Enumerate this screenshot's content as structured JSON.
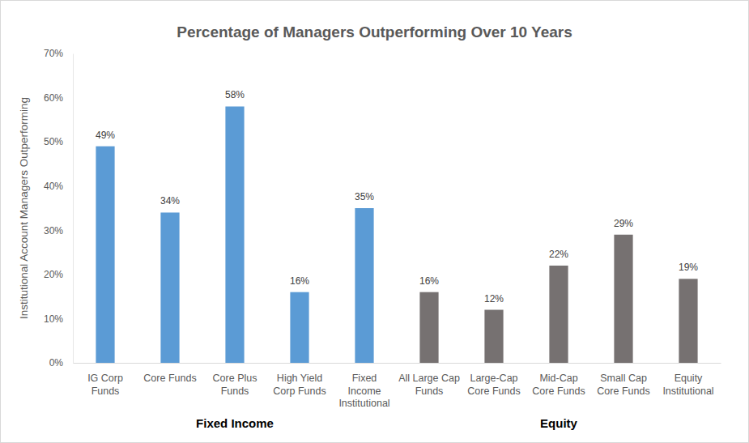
{
  "chart_data": {
    "type": "bar",
    "title": "Percentage of Managers Outperforming Over 10 Years",
    "y_label": "Institutional Account Managers Outperforming",
    "categories": [
      "IG Corp\nFunds",
      "Core Funds",
      "Core Plus\nFunds",
      "High Yield\nCorp Funds",
      "Fixed\nIncome\nInstitutional",
      "All Large Cap\nFunds",
      "Large-Cap\nCore Funds",
      "Mid-Cap\nCore Funds",
      "Small Cap\nCore Funds",
      "Equity\nInstitutional"
    ],
    "values": [
      49,
      34,
      58,
      16,
      35,
      16,
      12,
      22,
      29,
      19
    ],
    "value_labels": [
      "49%",
      "34%",
      "58%",
      "16%",
      "35%",
      "16%",
      "12%",
      "22%",
      "29%",
      "19%"
    ],
    "colors": [
      "#5b9bd5",
      "#5b9bd5",
      "#5b9bd5",
      "#5b9bd5",
      "#5b9bd5",
      "#767171",
      "#767171",
      "#767171",
      "#767171",
      "#767171"
    ],
    "groups": [
      {
        "name": "Fixed Income",
        "size": 5
      },
      {
        "name": "Equity",
        "size": 5
      }
    ],
    "ylim": [
      0,
      70
    ],
    "yticks": [
      {
        "value": 0,
        "label": "0%"
      },
      {
        "value": 10,
        "label": "10%"
      },
      {
        "value": 20,
        "label": "20%"
      },
      {
        "value": 30,
        "label": "30%"
      },
      {
        "value": 40,
        "label": "40%"
      },
      {
        "value": 50,
        "label": "50%"
      },
      {
        "value": 60,
        "label": "60%"
      },
      {
        "value": 70,
        "label": "70%"
      }
    ],
    "grid": false,
    "data_labels": true
  }
}
